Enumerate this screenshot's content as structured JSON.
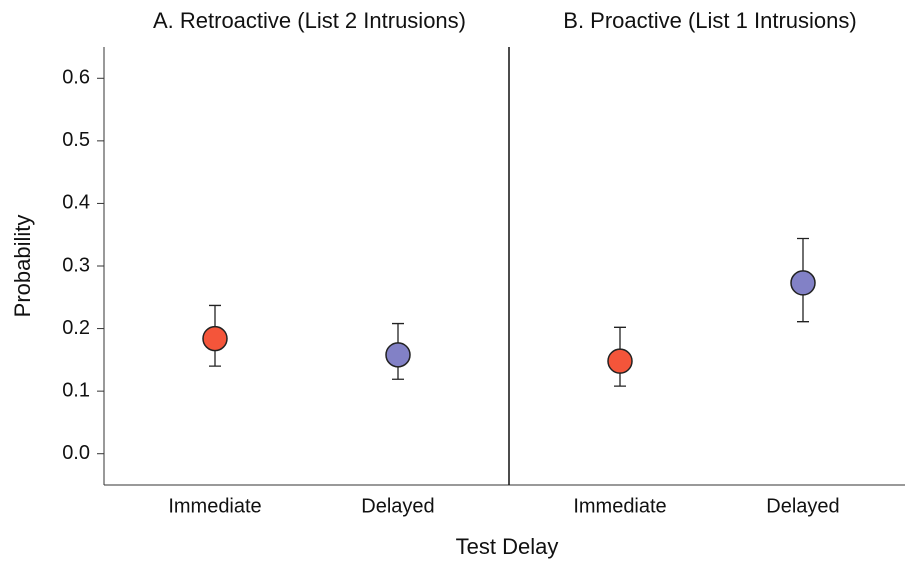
{
  "axis_labels": {
    "x": "Test Delay",
    "y": "Probability"
  },
  "chart_data": [
    {
      "type": "errorpoint",
      "title": "A. Retroactive (List 2 Intrusions)",
      "categories": [
        "Immediate",
        "Delayed"
      ],
      "values": [
        0.184,
        0.158
      ],
      "lower": [
        0.14,
        0.119
      ],
      "upper": [
        0.237,
        0.208
      ],
      "colors": [
        "#f4553a",
        "#8281c6"
      ],
      "ylim": [
        -0.05,
        0.65
      ],
      "yticks": [
        {
          "value": 0,
          "label": "0.0"
        },
        0.1,
        0.2,
        0.3,
        0.4,
        0.5,
        0.6
      ]
    },
    {
      "type": "errorpoint",
      "title": "B. Proactive (List 1 Intrusions)",
      "categories": [
        "Immediate",
        "Delayed"
      ],
      "values": [
        0.148,
        0.273
      ],
      "lower": [
        0.108,
        0.211
      ],
      "upper": [
        0.202,
        0.344
      ],
      "colors": [
        "#f4553a",
        "#8281c6"
      ],
      "ylim": [
        -0.05,
        0.65
      ]
    }
  ]
}
